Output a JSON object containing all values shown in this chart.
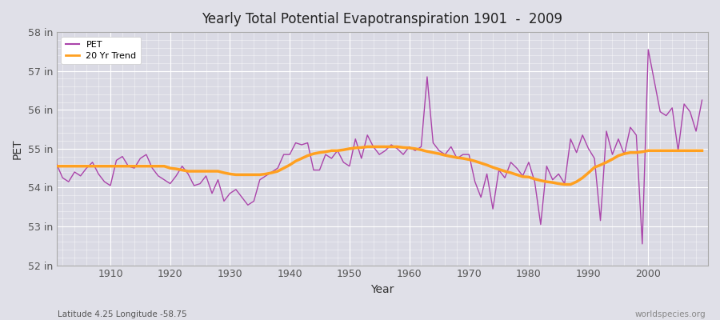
{
  "title": "Yearly Total Potential Evapotranspiration 1901  -  2009",
  "xlabel": "Year",
  "ylabel": "PET",
  "lat_lon_label": "Latitude 4.25 Longitude -58.75",
  "watermark": "worldspecies.org",
  "ylim": [
    52,
    58
  ],
  "yticks": [
    52,
    53,
    54,
    55,
    56,
    57,
    58
  ],
  "ytick_labels": [
    "52 in",
    "53 in",
    "54 in",
    "55 in",
    "56 in",
    "57 in",
    "58 in"
  ],
  "xticks": [
    1910,
    1920,
    1930,
    1940,
    1950,
    1960,
    1970,
    1980,
    1990,
    2000
  ],
  "pet_color": "#AA44AA",
  "trend_color": "#FFA020",
  "fig_bg_color": "#E0E0E8",
  "plot_bg_color": "#DADAE4",
  "years": [
    1901,
    1902,
    1903,
    1904,
    1905,
    1906,
    1907,
    1908,
    1909,
    1910,
    1911,
    1912,
    1913,
    1914,
    1915,
    1916,
    1917,
    1918,
    1919,
    1920,
    1921,
    1922,
    1923,
    1924,
    1925,
    1926,
    1927,
    1928,
    1929,
    1930,
    1931,
    1932,
    1933,
    1934,
    1935,
    1936,
    1937,
    1938,
    1939,
    1940,
    1941,
    1942,
    1943,
    1944,
    1945,
    1946,
    1947,
    1948,
    1949,
    1950,
    1951,
    1952,
    1953,
    1954,
    1955,
    1956,
    1957,
    1958,
    1959,
    1960,
    1961,
    1962,
    1963,
    1964,
    1965,
    1966,
    1967,
    1968,
    1969,
    1970,
    1971,
    1972,
    1973,
    1974,
    1975,
    1976,
    1977,
    1978,
    1979,
    1980,
    1981,
    1982,
    1983,
    1984,
    1985,
    1986,
    1987,
    1988,
    1989,
    1990,
    1991,
    1992,
    1993,
    1994,
    1995,
    1996,
    1997,
    1998,
    1999,
    2000,
    2001,
    2002,
    2003,
    2004,
    2005,
    2006,
    2007,
    2008,
    2009
  ],
  "pet_values": [
    54.6,
    54.25,
    54.15,
    54.4,
    54.3,
    54.5,
    54.65,
    54.35,
    54.15,
    54.05,
    54.7,
    54.8,
    54.55,
    54.5,
    54.75,
    54.85,
    54.5,
    54.3,
    54.2,
    54.1,
    54.3,
    54.55,
    54.35,
    54.05,
    54.1,
    54.3,
    53.85,
    54.2,
    53.65,
    53.85,
    53.95,
    53.75,
    53.55,
    53.65,
    54.2,
    54.3,
    54.4,
    54.5,
    54.85,
    54.85,
    55.15,
    55.1,
    55.15,
    54.45,
    54.45,
    54.85,
    54.75,
    54.95,
    54.65,
    54.55,
    55.25,
    54.75,
    55.35,
    55.05,
    54.85,
    54.95,
    55.1,
    55.0,
    54.85,
    55.05,
    54.95,
    55.05,
    56.85,
    55.15,
    54.95,
    54.85,
    55.05,
    54.75,
    54.85,
    54.85,
    54.15,
    53.75,
    54.35,
    53.45,
    54.45,
    54.25,
    54.65,
    54.5,
    54.3,
    54.65,
    54.15,
    53.05,
    54.55,
    54.2,
    54.35,
    54.1,
    55.25,
    54.9,
    55.35,
    55.0,
    54.75,
    53.15,
    55.45,
    54.85,
    55.25,
    54.85,
    55.55,
    55.35,
    52.55,
    57.55,
    56.75,
    55.95,
    55.85,
    56.05,
    54.95,
    56.15,
    55.95,
    55.45,
    56.25
  ],
  "trend_values": [
    54.55,
    54.55,
    54.55,
    54.55,
    54.55,
    54.55,
    54.55,
    54.55,
    54.55,
    54.55,
    54.55,
    54.55,
    54.55,
    54.55,
    54.55,
    54.55,
    54.55,
    54.55,
    54.55,
    54.5,
    54.48,
    54.45,
    54.42,
    54.42,
    54.42,
    54.42,
    54.42,
    54.42,
    54.38,
    54.35,
    54.33,
    54.33,
    54.33,
    54.33,
    54.33,
    54.35,
    54.38,
    54.42,
    54.5,
    54.58,
    54.68,
    54.75,
    54.82,
    54.87,
    54.9,
    54.92,
    54.95,
    54.95,
    54.97,
    55.0,
    55.02,
    55.03,
    55.05,
    55.05,
    55.05,
    55.05,
    55.05,
    55.05,
    55.03,
    55.02,
    55.0,
    54.97,
    54.93,
    54.9,
    54.87,
    54.83,
    54.8,
    54.77,
    54.75,
    54.72,
    54.68,
    54.63,
    54.58,
    54.52,
    54.47,
    54.42,
    54.38,
    54.33,
    54.28,
    54.27,
    54.22,
    54.18,
    54.15,
    54.13,
    54.1,
    54.08,
    54.08,
    54.15,
    54.25,
    54.38,
    54.52,
    54.58,
    54.65,
    54.73,
    54.82,
    54.87,
    54.9,
    54.9,
    54.92,
    54.95,
    54.95,
    54.95,
    54.95,
    54.95,
    54.95,
    54.95,
    54.95,
    54.95,
    54.95
  ]
}
